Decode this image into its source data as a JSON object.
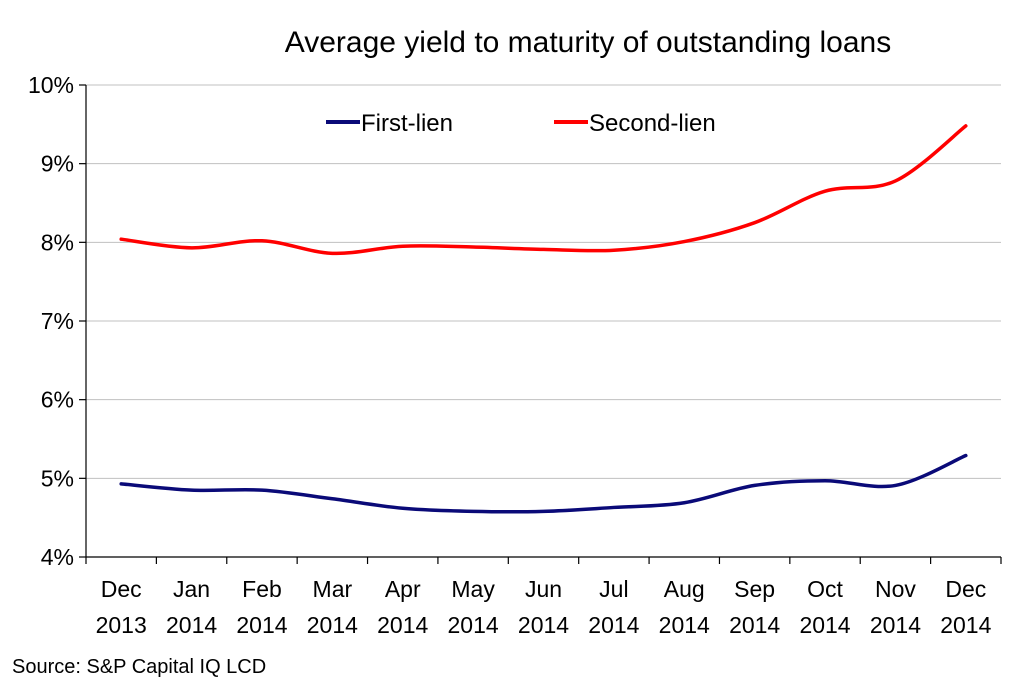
{
  "chart_data": {
    "type": "line",
    "title": "Average yield to maturity of outstanding loans",
    "xlabel": "",
    "ylabel": "",
    "categories": [
      [
        "Dec",
        "2013"
      ],
      [
        "Jan",
        "2014"
      ],
      [
        "Feb",
        "2014"
      ],
      [
        "Mar",
        "2014"
      ],
      [
        "Apr",
        "2014"
      ],
      [
        "May",
        "2014"
      ],
      [
        "Jun",
        "2014"
      ],
      [
        "Jul",
        "2014"
      ],
      [
        "Aug",
        "2014"
      ],
      [
        "Sep",
        "2014"
      ],
      [
        "Oct",
        "2014"
      ],
      [
        "Nov",
        "2014"
      ],
      [
        "Dec",
        "2014"
      ]
    ],
    "ylim": [
      4,
      10
    ],
    "yticks": [
      4,
      5,
      6,
      7,
      8,
      9,
      10
    ],
    "ytick_labels": [
      "4%",
      "5%",
      "6%",
      "7%",
      "8%",
      "9%",
      "10%"
    ],
    "grid": "horizontal",
    "legend_position": "top",
    "series": [
      {
        "name": "First-lien",
        "color": "#0a0a78",
        "values": [
          4.93,
          4.85,
          4.85,
          4.74,
          4.62,
          4.58,
          4.58,
          4.63,
          4.69,
          4.91,
          4.97,
          4.91,
          5.29
        ]
      },
      {
        "name": "Second-lien",
        "color": "#ff0000",
        "values": [
          8.04,
          7.93,
          8.02,
          7.86,
          7.95,
          7.94,
          7.91,
          7.9,
          8.01,
          8.25,
          8.65,
          8.78,
          9.48
        ]
      }
    ]
  },
  "source": "Source: S&P Capital IQ LCD"
}
